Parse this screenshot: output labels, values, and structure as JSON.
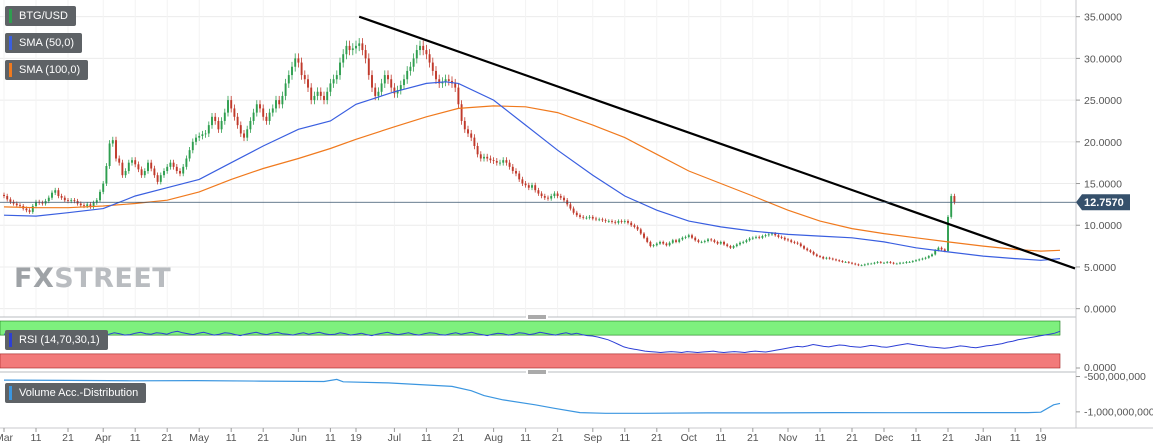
{
  "legends": {
    "main": "BTG/USD",
    "sma50": "SMA (50,0)",
    "sma100": "SMA (100,0)",
    "rsi": "RSI (14,70,30,1)",
    "volume": "Volume Acc.-Distribution"
  },
  "colors": {
    "up": "#2e9e4f",
    "down": "#c0392b",
    "sma50": "#3a5fe0",
    "sma100": "#f07a1e",
    "trendline": "#000000",
    "rsi_line": "#2d3fd6",
    "rsi_overbought": "#7ef07e",
    "rsi_oversold": "#f27a7a",
    "volume_line": "#3b96e0",
    "price_tag_bg": "#35506b",
    "legend_bg": "#5e6266"
  },
  "watermark": {
    "fx": "FX",
    "street": "STREET"
  },
  "current_price": "12.7570",
  "chart_data": [
    {
      "type": "line",
      "title": "BTG/USD",
      "ylim": [
        -1,
        37
      ],
      "yticks": [
        "35.0000",
        "30.0000",
        "25.0000",
        "20.0000",
        "15.0000",
        "10.0000",
        "5.0000",
        "0.0000"
      ],
      "ytick_values": [
        35,
        30,
        25,
        20,
        15,
        10,
        5,
        0
      ],
      "xticks": [
        "Mar",
        "11",
        "21",
        "Apr",
        "11",
        "21",
        "May",
        "11",
        "21",
        "Jun",
        "11",
        "19",
        "Jul",
        "11",
        "21",
        "Aug",
        "11",
        "21",
        "Sep",
        "11",
        "21",
        "Oct",
        "11",
        "21",
        "Nov",
        "11",
        "21",
        "Dec",
        "11",
        "21",
        "Jan",
        "11",
        "19"
      ],
      "xtick_index": [
        0,
        10,
        20,
        31,
        41,
        51,
        61,
        71,
        81,
        92,
        102,
        110,
        122,
        132,
        142,
        153,
        163,
        173,
        184,
        194,
        204,
        214,
        224,
        234,
        245,
        255,
        265,
        275,
        285,
        295,
        306,
        316,
        324
      ],
      "close": [
        13.5,
        13.1,
        12.8,
        12.6,
        12.4,
        12.3,
        12.0,
        11.8,
        11.6,
        12.3,
        12.8,
        12.7,
        12.6,
        12.9,
        13.3,
        13.9,
        14.2,
        13.5,
        13.3,
        13.0,
        12.9,
        13.0,
        12.9,
        12.6,
        12.4,
        12.3,
        12.5,
        12.2,
        12.7,
        13.0,
        14.0,
        15.0,
        17.1,
        19.8,
        20.2,
        18.0,
        17.5,
        16.0,
        16.5,
        17.5,
        17.8,
        17.3,
        16.7,
        16.0,
        16.5,
        17.5,
        16.8,
        16.0,
        15.2,
        16.0,
        16.5,
        17.0,
        17.5,
        17.0,
        16.5,
        16.2,
        17.0,
        18.0,
        19.0,
        20.0,
        20.5,
        20.7,
        20.9,
        21.0,
        22.0,
        23.0,
        22.5,
        21.5,
        22.5,
        23.5,
        25.0,
        24.0,
        23.0,
        22.0,
        21.0,
        20.5,
        21.5,
        22.5,
        23.5,
        24.5,
        24.0,
        23.0,
        22.5,
        23.5,
        24.0,
        25.0,
        24.5,
        25.5,
        27.0,
        28.0,
        29.0,
        30.0,
        29.5,
        28.0,
        27.5,
        26.5,
        25.0,
        25.5,
        26.0,
        25.5,
        25.0,
        26.0,
        27.0,
        27.5,
        28.0,
        29.5,
        30.5,
        31.5,
        31.0,
        31.2,
        31.5,
        31.8,
        31.0,
        30.0,
        28.0,
        26.5,
        25.5,
        26.0,
        27.0,
        28.0,
        27.5,
        26.5,
        25.8,
        26.2,
        26.8,
        27.5,
        28.5,
        29.0,
        30.0,
        31.0,
        31.5,
        31.0,
        30.5,
        29.5,
        28.5,
        27.5,
        27.0,
        27.2,
        27.5,
        27.3,
        27.0,
        26.5,
        24.5,
        22.5,
        21.5,
        21.0,
        20.5,
        19.5,
        18.5,
        18.0,
        18.2,
        18.0,
        17.8,
        17.7,
        17.5,
        17.5,
        17.8,
        17.5,
        17.0,
        16.5,
        16.2,
        15.5,
        15.0,
        14.8,
        14.5,
        14.8,
        14.2,
        13.8,
        13.5,
        13.3,
        13.2,
        13.5,
        13.8,
        13.5,
        13.3,
        13.0,
        12.5,
        12.0,
        11.5,
        11.2,
        11.0,
        10.9,
        10.9,
        11.0,
        10.8,
        10.7,
        10.7,
        10.6,
        10.5,
        10.5,
        10.4,
        10.3,
        10.5,
        10.4,
        10.5,
        10.3,
        10.0,
        9.8,
        9.5,
        9.0,
        8.5,
        8.0,
        7.5,
        7.6,
        7.8,
        8.0,
        7.8,
        7.6,
        7.9,
        8.2,
        8.0,
        8.3,
        8.5,
        8.6,
        8.8,
        8.5,
        8.2,
        8.0,
        8.0,
        8.1,
        8.3,
        8.2,
        8.0,
        7.8,
        8.0,
        7.7,
        7.5,
        7.3,
        7.5,
        7.7,
        7.9,
        8.0,
        8.2,
        8.4,
        8.5,
        8.6,
        8.5,
        8.7,
        8.8,
        8.9,
        9.0,
        8.8,
        8.6,
        8.5,
        8.3,
        8.2,
        8.0,
        7.9,
        7.8,
        7.5,
        7.2,
        7.0,
        6.8,
        6.5,
        6.3,
        6.2,
        6.0,
        6.1,
        6.0,
        5.9,
        5.8,
        5.7,
        5.6,
        5.6,
        5.5,
        5.4,
        5.3,
        5.2,
        5.2,
        5.3,
        5.4,
        5.4,
        5.5,
        5.6,
        5.5,
        5.5,
        5.6,
        5.5,
        5.4,
        5.4,
        5.5,
        5.5,
        5.6,
        5.6,
        5.7,
        5.8,
        5.9,
        6.0,
        6.1,
        6.3,
        6.5,
        7.0,
        7.3,
        7.1,
        6.9,
        11.0,
        13.5,
        12.76
      ],
      "sma50_points": [
        [
          0,
          11.2
        ],
        [
          10,
          11.1
        ],
        [
          20,
          11.5
        ],
        [
          31,
          12.0
        ],
        [
          41,
          13.5
        ],
        [
          51,
          14.5
        ],
        [
          61,
          15.5
        ],
        [
          71,
          17.5
        ],
        [
          81,
          19.5
        ],
        [
          92,
          21.5
        ],
        [
          102,
          22.5
        ],
        [
          110,
          24.5
        ],
        [
          122,
          26.0
        ],
        [
          132,
          27.0
        ],
        [
          138,
          27.2
        ],
        [
          142,
          27.0
        ],
        [
          153,
          25.0
        ],
        [
          163,
          22.0
        ],
        [
          173,
          19.0
        ],
        [
          184,
          16.0
        ],
        [
          194,
          13.5
        ],
        [
          204,
          11.8
        ],
        [
          214,
          10.5
        ],
        [
          224,
          9.8
        ],
        [
          234,
          9.3
        ],
        [
          245,
          8.9
        ],
        [
          255,
          8.7
        ],
        [
          265,
          8.5
        ],
        [
          275,
          8.0
        ],
        [
          285,
          7.3
        ],
        [
          295,
          6.8
        ],
        [
          306,
          6.3
        ],
        [
          316,
          6.0
        ],
        [
          324,
          5.8
        ],
        [
          330,
          6.0
        ]
      ],
      "sma100_points": [
        [
          0,
          12.2
        ],
        [
          10,
          12.1
        ],
        [
          20,
          12.1
        ],
        [
          31,
          12.3
        ],
        [
          41,
          12.6
        ],
        [
          51,
          13.0
        ],
        [
          61,
          14.0
        ],
        [
          71,
          15.5
        ],
        [
          81,
          16.8
        ],
        [
          92,
          18.0
        ],
        [
          102,
          19.2
        ],
        [
          110,
          20.3
        ],
        [
          122,
          21.8
        ],
        [
          132,
          23.0
        ],
        [
          142,
          24.0
        ],
        [
          153,
          24.3
        ],
        [
          163,
          24.2
        ],
        [
          173,
          23.5
        ],
        [
          184,
          22.0
        ],
        [
          194,
          20.5
        ],
        [
          204,
          18.5
        ],
        [
          214,
          16.5
        ],
        [
          224,
          15.0
        ],
        [
          234,
          13.5
        ],
        [
          245,
          11.8
        ],
        [
          255,
          10.5
        ],
        [
          265,
          9.6
        ],
        [
          275,
          9.0
        ],
        [
          285,
          8.5
        ],
        [
          295,
          8.0
        ],
        [
          306,
          7.5
        ],
        [
          316,
          7.1
        ],
        [
          324,
          6.9
        ],
        [
          330,
          7.0
        ]
      ],
      "trendline": [
        [
          111,
          35.0
        ],
        [
          330,
          5.0
        ]
      ]
    },
    {
      "type": "line",
      "title": "RSI (14,70,30,1)",
      "ylim": [
        0,
        100
      ],
      "yticks": [
        "0.0000"
      ],
      "ytick_values": [
        0
      ],
      "bands": {
        "overbought": 70,
        "oversold": 30
      },
      "values": [
        72,
        74,
        71,
        69,
        73,
        75,
        72,
        70,
        74,
        76,
        73,
        71,
        75,
        77,
        74,
        72,
        76,
        74,
        71,
        69,
        72,
        75,
        73,
        70,
        71,
        74,
        76,
        73,
        72,
        75,
        74,
        72,
        76,
        78,
        75,
        73,
        71,
        74,
        76,
        73,
        70,
        72,
        75,
        74,
        71,
        69,
        72,
        74,
        76,
        73,
        71,
        74,
        76,
        73,
        72,
        70,
        73,
        75,
        72,
        74,
        76,
        73,
        71,
        72,
        75,
        73,
        70,
        72,
        74,
        71,
        69,
        72,
        74,
        76,
        73,
        71,
        73,
        75,
        72,
        70,
        73,
        75,
        74,
        71,
        70,
        73,
        75,
        72,
        74,
        76,
        73,
        71,
        69,
        72,
        74,
        73,
        70,
        72,
        75,
        74,
        71,
        73,
        76,
        74,
        72,
        70,
        73,
        75,
        72,
        74,
        71,
        69,
        68,
        66,
        63,
        60,
        55,
        50,
        45,
        42,
        40,
        38,
        36,
        35,
        34,
        33,
        34,
        35,
        34,
        33,
        35,
        34,
        33,
        34,
        35,
        36,
        34,
        33,
        34,
        35,
        34,
        33,
        35,
        36,
        35,
        34,
        36,
        38,
        40,
        42,
        44,
        46,
        45,
        47,
        50,
        48,
        46,
        45,
        47,
        49,
        48,
        46,
        45,
        44,
        46,
        48,
        47,
        45,
        44,
        46,
        48,
        50,
        52,
        50,
        48,
        47,
        45,
        44,
        43,
        42,
        43,
        45,
        47,
        46,
        44,
        43,
        45,
        47,
        48,
        50,
        52,
        55,
        57,
        60,
        62,
        64,
        66,
        68,
        70,
        72,
        74,
        78
      ],
      "x_span": 330
    },
    {
      "type": "line",
      "title": "Volume Acc.-Distribution",
      "ylim": [
        -1200000000,
        -450000000
      ],
      "yticks": [
        "-500,000,000",
        "-1,000,000,000"
      ],
      "ytick_values": [
        -500000000,
        -1000000000
      ],
      "points": [
        [
          0,
          -550000000
        ],
        [
          20,
          -555000000
        ],
        [
          40,
          -560000000
        ],
        [
          60,
          -558000000
        ],
        [
          80,
          -565000000
        ],
        [
          100,
          -570000000
        ],
        [
          104,
          -540000000
        ],
        [
          106,
          -575000000
        ],
        [
          120,
          -590000000
        ],
        [
          140,
          -640000000
        ],
        [
          146,
          -700000000
        ],
        [
          150,
          -770000000
        ],
        [
          156,
          -830000000
        ],
        [
          166,
          -900000000
        ],
        [
          172,
          -950000000
        ],
        [
          180,
          -1010000000
        ],
        [
          188,
          -1020000000
        ],
        [
          200,
          -1020000000
        ],
        [
          220,
          -1015000000
        ],
        [
          240,
          -1015000000
        ],
        [
          260,
          -1010000000
        ],
        [
          280,
          -1012000000
        ],
        [
          300,
          -1010000000
        ],
        [
          320,
          -1010000000
        ],
        [
          324,
          -1005000000
        ],
        [
          328,
          -900000000
        ],
        [
          330,
          -880000000
        ]
      ]
    }
  ]
}
